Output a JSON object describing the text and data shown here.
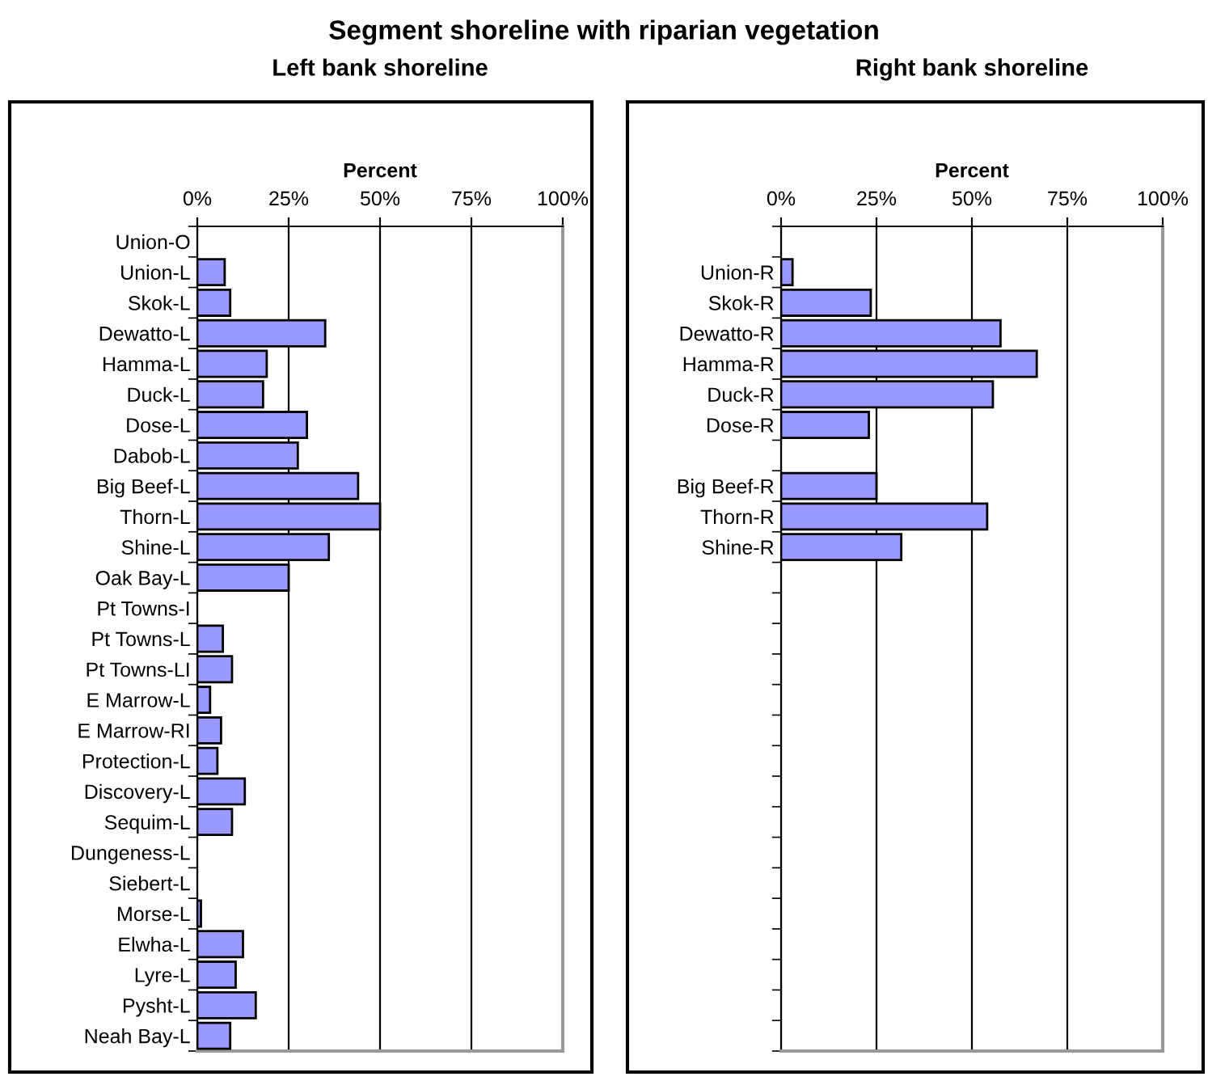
{
  "chart_data": [
    {
      "type": "bar",
      "orientation": "horizontal",
      "title": "Segment shoreline with riparian vegetation",
      "subtitle": "Left bank shoreline",
      "xlabel": "Percent",
      "categories": [
        "Union-O",
        "Union-L",
        "Skok-L",
        "Dewatto-L",
        "Hamma-L",
        "Duck-L",
        "Dose-L",
        "Dabob-L",
        "Big Beef-L",
        "Thorn-L",
        "Shine-L",
        "Oak Bay-L",
        "Pt Towns-I",
        "Pt Towns-L",
        "Pt Towns-LI",
        "E Marrow-L",
        "E Marrow-RI",
        "Protection-L",
        "Discovery-L",
        "Sequim-L",
        "Dungeness-L",
        "Siebert-L",
        "Morse-L",
        "Elwha-L",
        "Lyre-L",
        "Pysht-L",
        "Neah Bay-L"
      ],
      "values": [
        0,
        7.5,
        9,
        35,
        19,
        18,
        30,
        27.5,
        44,
        50,
        36,
        25,
        0,
        7,
        9.5,
        3.5,
        6.5,
        5.5,
        13,
        9.5,
        0,
        0,
        1,
        12.5,
        10.5,
        16,
        9
      ],
      "color": "#9999ff",
      "xlim": [
        0,
        100
      ],
      "xticks": [
        {
          "value": 0,
          "label": "0%"
        },
        {
          "value": 25,
          "label": "25%"
        },
        {
          "value": 50,
          "label": "50%"
        },
        {
          "value": 75,
          "label": "75%"
        },
        {
          "value": 100,
          "label": "100%"
        }
      ],
      "grid": "x",
      "legend": false
    },
    {
      "type": "bar",
      "orientation": "horizontal",
      "subtitle": "Right bank shoreline",
      "xlabel": "Percent",
      "categories": [
        null,
        "Union-R",
        "Skok-R",
        "Dewatto-R",
        "Hamma-R",
        "Duck-R",
        "Dose-R",
        null,
        "Big Beef-R",
        "Thorn-R",
        "Shine-R",
        null,
        null,
        null,
        null,
        null,
        null,
        null,
        null,
        null,
        null,
        null,
        null,
        null,
        null,
        null,
        null
      ],
      "values": [
        null,
        3,
        23.5,
        57.5,
        67,
        55.5,
        23,
        null,
        25,
        54,
        31.5,
        null,
        null,
        null,
        null,
        null,
        null,
        null,
        null,
        null,
        null,
        null,
        null,
        null,
        null,
        null,
        null
      ],
      "color": "#9999ff",
      "xlim": [
        0,
        100
      ],
      "xticks": [
        {
          "value": 0,
          "label": "0%"
        },
        {
          "value": 25,
          "label": "25%"
        },
        {
          "value": 50,
          "label": "50%"
        },
        {
          "value": 75,
          "label": "75%"
        },
        {
          "value": 100,
          "label": "100%"
        }
      ],
      "grid": "x",
      "legend": false
    }
  ]
}
